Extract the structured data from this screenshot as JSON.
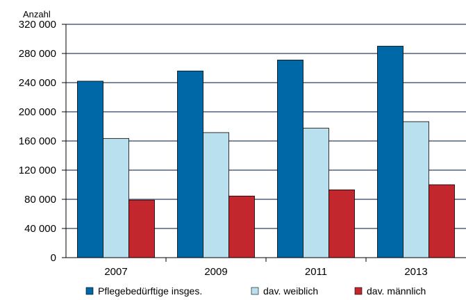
{
  "chart_data": {
    "type": "bar",
    "categories": [
      "2007",
      "2009",
      "2011",
      "2013"
    ],
    "series": [
      {
        "name": "Pflegebedürftige insges.",
        "color": "#0068a6",
        "values": [
          242000,
          256000,
          271000,
          290000
        ]
      },
      {
        "name": "dav. weiblich",
        "color": "#b8e0ee",
        "values": [
          163500,
          171500,
          177500,
          186500
        ]
      },
      {
        "name": "dav. männlich",
        "color": "#c1272d",
        "values": [
          79000,
          84500,
          93000,
          100000
        ]
      }
    ],
    "y_unit_label": "Anzahl",
    "ylim": [
      0,
      320000
    ],
    "y_ticks": [
      "0",
      "40 000",
      "80 000",
      "120 000",
      "160 000",
      "200 000",
      "240 000",
      "280 000",
      "320 000"
    ],
    "grid": true,
    "legend_position": "bottom"
  }
}
